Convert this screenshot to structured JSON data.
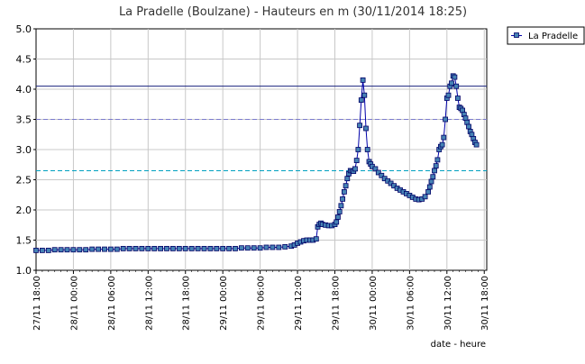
{
  "chart_data": {
    "type": "line",
    "title": "La Pradelle (Boulzane) - Hauteurs en m (30/11/2014 18:25)",
    "xlabel": "date - heure",
    "ylabel": "",
    "ylim": [
      1.0,
      5.0
    ],
    "yticks": [
      "1.0",
      "1.5",
      "2.0",
      "2.5",
      "3.0",
      "3.5",
      "4.0",
      "4.5",
      "5.0"
    ],
    "xticks": [
      {
        "label": "27/11 18:00",
        "hour": 0
      },
      {
        "label": "28/11 00:00",
        "hour": 6
      },
      {
        "label": "28/11 06:00",
        "hour": 12
      },
      {
        "label": "28/11 12:00",
        "hour": 18
      },
      {
        "label": "28/11 18:00",
        "hour": 24
      },
      {
        "label": "29/11 00:00",
        "hour": 30
      },
      {
        "label": "29/11 06:00",
        "hour": 36
      },
      {
        "label": "29/11 12:00",
        "hour": 42
      },
      {
        "label": "29/11 18:00",
        "hour": 48
      },
      {
        "label": "30/11 00:00",
        "hour": 54
      },
      {
        "label": "30/11 06:00",
        "hour": 60
      },
      {
        "label": "30/11 12:00",
        "hour": 66
      },
      {
        "label": "30/11 18:00",
        "hour": 72
      }
    ],
    "xlim_hours": [
      0,
      72.4
    ],
    "grid": true,
    "legend_placement": "right",
    "reference_lines": [
      {
        "value": 4.05,
        "style": "solid",
        "color": "#1a237e"
      },
      {
        "value": 3.5,
        "style": "dashed",
        "color": "#7a7acc"
      },
      {
        "value": 2.65,
        "style": "dashed",
        "color": "#00a0c0"
      }
    ],
    "series": [
      {
        "name": "La Pradelle",
        "color": "#0000aa",
        "marker_color": "#4682b4",
        "points": [
          [
            0,
            1.33
          ],
          [
            1,
            1.33
          ],
          [
            2,
            1.33
          ],
          [
            3,
            1.34
          ],
          [
            4,
            1.34
          ],
          [
            5,
            1.34
          ],
          [
            6,
            1.34
          ],
          [
            7,
            1.34
          ],
          [
            8,
            1.34
          ],
          [
            9,
            1.35
          ],
          [
            10,
            1.35
          ],
          [
            11,
            1.35
          ],
          [
            12,
            1.35
          ],
          [
            13,
            1.35
          ],
          [
            14,
            1.36
          ],
          [
            15,
            1.36
          ],
          [
            16,
            1.36
          ],
          [
            17,
            1.36
          ],
          [
            18,
            1.36
          ],
          [
            19,
            1.36
          ],
          [
            20,
            1.36
          ],
          [
            21,
            1.36
          ],
          [
            22,
            1.36
          ],
          [
            23,
            1.36
          ],
          [
            24,
            1.36
          ],
          [
            25,
            1.36
          ],
          [
            26,
            1.36
          ],
          [
            27,
            1.36
          ],
          [
            28,
            1.36
          ],
          [
            29,
            1.36
          ],
          [
            30,
            1.36
          ],
          [
            31,
            1.36
          ],
          [
            32,
            1.36
          ],
          [
            33,
            1.37
          ],
          [
            34,
            1.37
          ],
          [
            35,
            1.37
          ],
          [
            36,
            1.37
          ],
          [
            37,
            1.38
          ],
          [
            38,
            1.38
          ],
          [
            39,
            1.38
          ],
          [
            40,
            1.39
          ],
          [
            41,
            1.4
          ],
          [
            41.5,
            1.42
          ],
          [
            42,
            1.45
          ],
          [
            42.5,
            1.47
          ],
          [
            43,
            1.49
          ],
          [
            43.5,
            1.5
          ],
          [
            44,
            1.5
          ],
          [
            44.5,
            1.5
          ],
          [
            45,
            1.52
          ],
          [
            45.25,
            1.72
          ],
          [
            45.5,
            1.76
          ],
          [
            45.75,
            1.78
          ],
          [
            46,
            1.76
          ],
          [
            46.5,
            1.75
          ],
          [
            47,
            1.74
          ],
          [
            47.5,
            1.74
          ],
          [
            48,
            1.76
          ],
          [
            48.25,
            1.8
          ],
          [
            48.5,
            1.88
          ],
          [
            48.75,
            1.97
          ],
          [
            49,
            2.07
          ],
          [
            49.25,
            2.18
          ],
          [
            49.5,
            2.3
          ],
          [
            49.75,
            2.4
          ],
          [
            50,
            2.52
          ],
          [
            50.25,
            2.6
          ],
          [
            50.5,
            2.65
          ],
          [
            50.75,
            2.65
          ],
          [
            51,
            2.64
          ],
          [
            51.25,
            2.68
          ],
          [
            51.5,
            2.82
          ],
          [
            51.75,
            3.0
          ],
          [
            52,
            3.4
          ],
          [
            52.25,
            3.82
          ],
          [
            52.5,
            4.15
          ],
          [
            52.75,
            3.9
          ],
          [
            53,
            3.35
          ],
          [
            53.25,
            3.0
          ],
          [
            53.5,
            2.8
          ],
          [
            53.75,
            2.76
          ],
          [
            54,
            2.72
          ],
          [
            54.5,
            2.68
          ],
          [
            55,
            2.62
          ],
          [
            55.5,
            2.57
          ],
          [
            56,
            2.52
          ],
          [
            56.5,
            2.48
          ],
          [
            57,
            2.44
          ],
          [
            57.5,
            2.4
          ],
          [
            58,
            2.36
          ],
          [
            58.5,
            2.33
          ],
          [
            59,
            2.3
          ],
          [
            59.5,
            2.27
          ],
          [
            60,
            2.24
          ],
          [
            60.5,
            2.21
          ],
          [
            61,
            2.18
          ],
          [
            61.5,
            2.17
          ],
          [
            62,
            2.18
          ],
          [
            62.5,
            2.22
          ],
          [
            63,
            2.3
          ],
          [
            63.25,
            2.38
          ],
          [
            63.5,
            2.47
          ],
          [
            63.75,
            2.55
          ],
          [
            64,
            2.65
          ],
          [
            64.25,
            2.73
          ],
          [
            64.5,
            2.83
          ],
          [
            64.75,
            3.0
          ],
          [
            65,
            3.05
          ],
          [
            65.25,
            3.08
          ],
          [
            65.5,
            3.2
          ],
          [
            65.75,
            3.5
          ],
          [
            66,
            3.85
          ],
          [
            66.25,
            3.9
          ],
          [
            66.5,
            4.05
          ],
          [
            66.75,
            4.1
          ],
          [
            67,
            4.22
          ],
          [
            67.25,
            4.2
          ],
          [
            67.5,
            4.05
          ],
          [
            67.75,
            3.85
          ],
          [
            68,
            3.7
          ],
          [
            68.25,
            3.68
          ],
          [
            68.5,
            3.65
          ],
          [
            68.75,
            3.58
          ],
          [
            69,
            3.52
          ],
          [
            69.25,
            3.45
          ],
          [
            69.5,
            3.38
          ],
          [
            69.75,
            3.3
          ],
          [
            70,
            3.25
          ],
          [
            70.25,
            3.18
          ],
          [
            70.5,
            3.12
          ],
          [
            70.75,
            3.08
          ]
        ]
      }
    ]
  }
}
